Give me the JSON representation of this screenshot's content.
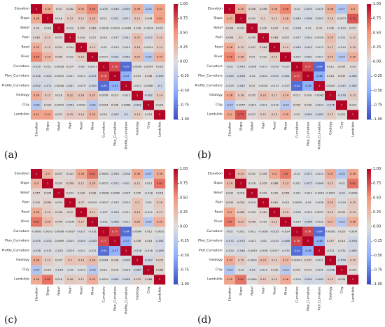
{
  "chart_data": [
    {
      "type": "heatmap",
      "panel_label": "(a)",
      "variables": [
        "Elevation",
        "Slope",
        "Relief",
        "Rain",
        "Road",
        "River",
        "Curvature",
        "Plan_Curvature",
        "Profile_Curvature",
        "Geology",
        "Clay",
        "Landslide"
      ],
      "colorbar": {
        "min": -1.0,
        "max": 1.0,
        "ticks": [
          1.0,
          0.75,
          0.5,
          0.25,
          0.0,
          -0.25,
          -0.5,
          -0.75,
          -1.0
        ]
      },
      "matrix": [
        [
          1,
          0.38,
          0.04,
          0.062,
          0.35,
          0.56,
          -0.035,
          -0.046,
          -0.092,
          0.36,
          -0.25,
          0.41
        ],
        [
          0.38,
          1,
          0.016,
          0.13,
          0.12,
          0.29,
          0.011,
          -0.051,
          -0.071,
          0.15,
          0.034,
          0.42
        ],
        [
          0.04,
          0.016,
          1,
          0.022,
          0.052,
          0.065,
          -0.0028,
          -0.0053,
          -0.0048,
          0.018,
          -0.0054,
          0.027
        ],
        [
          0.062,
          0.13,
          0.022,
          1,
          0.044,
          0.022,
          0.014,
          -0.017,
          -0.041,
          0.22,
          -0.052,
          0.15
        ],
        [
          0.35,
          0.12,
          0.052,
          0.044,
          1,
          0.13,
          -0.02,
          -0.013,
          -0.019,
          0.18,
          0.0034,
          0.14
        ],
        [
          0.56,
          0.29,
          0.065,
          0.022,
          0.13,
          1,
          0.0017,
          -0.091,
          -0.063,
          0.25,
          -0.25,
          0.33
        ],
        [
          -0.035,
          0.011,
          -0.0028,
          0.014,
          -0.02,
          0.0017,
          1,
          0.76,
          -0.85,
          0.0056,
          0.0094,
          0.019
        ],
        [
          -0.046,
          -0.051,
          -0.0053,
          -0.017,
          -0.013,
          -0.091,
          0.76,
          1,
          -0.47,
          0.013,
          0.036,
          -0.067
        ],
        [
          -0.092,
          -0.071,
          -0.0048,
          -0.041,
          -0.019,
          -0.063,
          -0.85,
          -0.47,
          1,
          -0.012,
          0.0068,
          -0.1
        ],
        [
          0.36,
          0.15,
          0.018,
          0.22,
          0.18,
          0.25,
          0.0056,
          0.013,
          -0.012,
          1,
          -0.062,
          0.14
        ],
        [
          -0.25,
          0.034,
          -0.0054,
          -0.052,
          0.0034,
          -0.25,
          0.0094,
          0.036,
          0.0068,
          -0.062,
          1,
          0.023
        ],
        [
          0.41,
          0.42,
          0.027,
          0.15,
          0.14,
          0.33,
          0.019,
          -0.067,
          -0.1,
          0.14,
          0.023,
          1
        ]
      ]
    },
    {
      "type": "heatmap",
      "panel_label": "(b)",
      "variables": [
        "Elevation",
        "Slope",
        "Relief",
        "Rain",
        "Road",
        "River",
        "Curvature",
        "Plan_Curvature",
        "Profile_Curvature",
        "Geology",
        "Clay",
        "Landslide"
      ],
      "colorbar": {
        "min": -1.0,
        "max": 1.0,
        "ticks": [
          1.0,
          0.75,
          0.5,
          0.25,
          0.0,
          -0.25,
          -0.5,
          -0.75,
          -1.0
        ]
      },
      "matrix": [
        [
          1,
          0.35,
          0.058,
          0.056,
          0.36,
          0.56,
          -0.02,
          -0.055,
          -0.025,
          0.36,
          -0.27,
          0.4
        ],
        [
          0.35,
          1,
          0.031,
          0.1,
          0.13,
          0.28,
          -0.043,
          -0.064,
          -0.045,
          0.16,
          0.0057,
          0.72
        ],
        [
          0.058,
          0.031,
          1,
          0.035,
          0.047,
          0.04,
          -0.036,
          -0.01,
          0.03,
          0.035,
          -0.023,
          0.027
        ],
        [
          0.056,
          0.1,
          0.035,
          1,
          0.064,
          0.022,
          -0.017,
          -0.044,
          0.0018,
          0.23,
          -0.021,
          0.12
        ],
        [
          0.36,
          0.13,
          0.047,
          0.064,
          1,
          0.14,
          -0.043,
          -0.053,
          -0.013,
          0.17,
          -0.019,
          0.15
        ],
        [
          0.56,
          0.28,
          0.04,
          0.022,
          0.14,
          1,
          -0.027,
          -0.061,
          -0.027,
          0.24,
          -0.24,
          0.35
        ],
        [
          -0.02,
          -0.043,
          -0.036,
          -0.017,
          -0.043,
          -0.027,
          1,
          0.77,
          -0.84,
          0.011,
          0.039,
          0.03
        ],
        [
          -0.055,
          -0.064,
          -0.01,
          -0.044,
          -0.053,
          -0.061,
          0.77,
          1,
          -0.48,
          0.024,
          0.039,
          -0.062
        ],
        [
          -0.025,
          -0.045,
          0.03,
          0.0018,
          -0.013,
          -0.027,
          -0.84,
          -0.48,
          1,
          0.0045,
          -0.043,
          -0.082
        ],
        [
          0.36,
          0.16,
          0.035,
          0.23,
          0.17,
          0.24,
          0.011,
          0.024,
          0.0045,
          1,
          -0.076,
          0.13
        ],
        [
          -0.27,
          0.0057,
          -0.023,
          -0.021,
          -0.019,
          -0.24,
          0.039,
          0.039,
          -0.043,
          -0.076,
          1,
          0.022
        ],
        [
          0.4,
          0.72,
          0.027,
          0.12,
          0.15,
          0.35,
          0.03,
          -0.062,
          -0.082,
          0.13,
          0.022,
          1
        ]
      ]
    },
    {
      "type": "heatmap",
      "panel_label": "(c)",
      "variables": [
        "Elevation",
        "Slope",
        "Relief",
        "Rain",
        "Road",
        "River",
        "Curvature",
        "Plan_Curvature",
        "Profile_Curvature",
        "Geology",
        "Clay",
        "Landslide"
      ],
      "colorbar": {
        "min": -1.0,
        "max": 1.0,
        "ticks": [
          1.0,
          0.75,
          0.5,
          0.25,
          0.0,
          -0.25,
          -0.5,
          -0.75,
          -1.0
        ]
      },
      "matrix": [
        [
          1,
          0.3,
          0.057,
          0.041,
          0.38,
          0.62,
          -0.0063,
          -0.055,
          -0.038,
          0.38,
          -0.27,
          0.36
        ],
        [
          0.3,
          1,
          0.035,
          0.099,
          0.12,
          0.26,
          -0.0051,
          -0.052,
          -0.031,
          0.12,
          0.015,
          0.62
        ],
        [
          0.057,
          0.035,
          1,
          0.024,
          0.049,
          0.049,
          -0.0098,
          -0.0069,
          -0.025,
          0.025,
          -0.018,
          0.016
        ],
        [
          0.041,
          0.099,
          0.024,
          1,
          0.07,
          0.0039,
          -0.0027,
          -0.025,
          -0.019,
          0.2,
          -0.02,
          0.16
        ],
        [
          0.38,
          0.12,
          0.049,
          0.07,
          1,
          0.17,
          -0.027,
          -0.054,
          -0.011,
          0.19,
          -0.012,
          0.11
        ],
        [
          0.62,
          0.26,
          0.049,
          0.0039,
          0.17,
          1,
          -0.031,
          -0.083,
          -0.021,
          0.26,
          -0.23,
          0.35
        ],
        [
          -0.0063,
          -0.0051,
          -0.0098,
          -0.0027,
          -0.027,
          -0.031,
          1,
          0.77,
          -0.84,
          0.0064,
          0.012,
          -0.0051
        ],
        [
          -0.055,
          -0.052,
          -0.0069,
          -0.025,
          -0.054,
          -0.083,
          0.77,
          1,
          -0.47,
          0.038,
          0.018,
          -0.081
        ],
        [
          -0.038,
          -0.031,
          -0.025,
          -0.019,
          -0.011,
          -0.021,
          -0.84,
          -0.47,
          1,
          -0.036,
          -0.018,
          -0.065
        ],
        [
          0.38,
          0.12,
          0.025,
          0.2,
          0.19,
          0.26,
          0.0064,
          0.038,
          -0.036,
          1,
          -0.087,
          0.075
        ],
        [
          -0.27,
          0.015,
          -0.018,
          -0.02,
          -0.012,
          -0.23,
          0.012,
          0.018,
          -0.018,
          -0.087,
          1,
          0.068
        ],
        [
          0.36,
          0.62,
          0.016,
          0.16,
          0.11,
          0.35,
          -0.0051,
          -0.081,
          -0.065,
          0.075,
          0.068,
          1
        ]
      ]
    },
    {
      "type": "heatmap",
      "panel_label": "(d)",
      "variables": [
        "Elevation",
        "Slope",
        "Relief",
        "Rain",
        "Road",
        "River",
        "Curvature",
        "Plan_Curvature",
        "Prof_Curvature",
        "Geology",
        "Clay",
        "Landslide"
      ],
      "colorbar": {
        "min": -1.0,
        "max": 1.0,
        "ticks": [
          1.0,
          0.75,
          0.5,
          0.25,
          0.0,
          -0.25,
          -0.5,
          -0.75,
          -1.0
        ]
      },
      "matrix": [
        [
          1,
          0.24,
          0.032,
          0.049,
          0.4,
          0.6,
          -0.02,
          -0.072,
          -0.024,
          0.37,
          -0.25,
          0.39
        ],
        [
          0.24,
          1,
          0.016,
          0.059,
          0.086,
          0.23,
          -0.011,
          -0.075,
          -0.046,
          0.15,
          -0.02,
          0.62
        ],
        [
          0.032,
          0.016,
          1,
          0.019,
          0.025,
          0.056,
          -0.011,
          -0.013,
          -0.0043,
          -0.0091,
          -0.04,
          -0.0061
        ],
        [
          0.049,
          0.059,
          0.019,
          1,
          0.061,
          0.015,
          -0.0095,
          -0.02,
          -0.008,
          0.23,
          -0.019,
          0.15
        ],
        [
          0.4,
          0.086,
          0.025,
          0.061,
          1,
          0.15,
          -0.035,
          -0.023,
          0.0037,
          0.13,
          0.039,
          0.14
        ],
        [
          0.6,
          0.23,
          0.056,
          0.015,
          0.15,
          1,
          -0.024,
          -0.086,
          -0.032,
          0.27,
          -0.23,
          0.36
        ],
        [
          -0.02,
          -0.011,
          -0.011,
          -0.0095,
          -0.035,
          -0.024,
          1,
          0.78,
          -0.84,
          0.00031,
          0.023,
          -0.004
        ],
        [
          -0.072,
          -0.075,
          -0.013,
          -0.02,
          -0.023,
          -0.086,
          0.78,
          1,
          -0.48,
          0.057,
          0.014,
          -0.094
        ],
        [
          -0.024,
          -0.046,
          -0.0043,
          -0.008,
          0.0037,
          -0.032,
          -0.84,
          -0.48,
          1,
          -0.021,
          -0.031,
          -0.062
        ],
        [
          0.37,
          0.15,
          -0.0091,
          0.23,
          0.13,
          0.27,
          0.00031,
          0.057,
          -0.021,
          1,
          -0.058,
          0.15
        ],
        [
          -0.25,
          -0.02,
          -0.04,
          -0.019,
          0.039,
          -0.23,
          0.023,
          0.014,
          -0.031,
          -0.058,
          1,
          0.034
        ],
        [
          0.39,
          0.62,
          -0.0061,
          0.15,
          0.14,
          0.36,
          -0.004,
          -0.094,
          -0.062,
          0.15,
          0.034,
          1
        ]
      ]
    }
  ]
}
